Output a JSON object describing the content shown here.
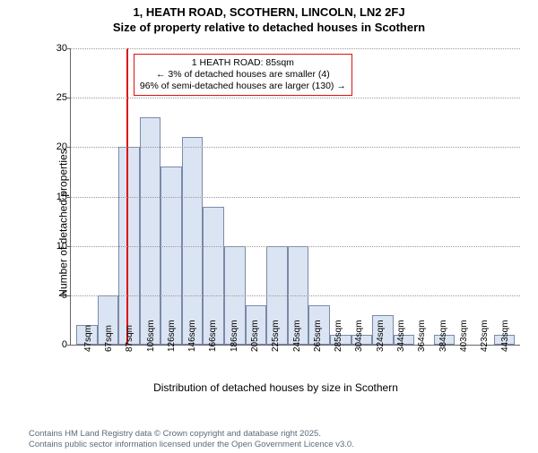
{
  "title_line1": "1, HEATH ROAD, SCOTHERN, LINCOLN, LN2 2FJ",
  "title_line2": "Size of property relative to detached houses in Scothern",
  "chart": {
    "type": "histogram",
    "y_axis_title": "Number of detached properties",
    "x_axis_title": "Distribution of detached houses by size in Scothern",
    "ylim": [
      0,
      30
    ],
    "ytick_step": 5,
    "bar_fill": "#dbe4f3",
    "bar_stroke": "#7a8aa8",
    "grid_color": "#999999",
    "background": "#ffffff",
    "ref_x_sqm": 85,
    "ref_color": "#dd1111",
    "x_ticks": [
      "47sqm",
      "67sqm",
      "87sqm",
      "106sqm",
      "126sqm",
      "146sqm",
      "166sqm",
      "186sqm",
      "205sqm",
      "225sqm",
      "245sqm",
      "265sqm",
      "285sqm",
      "304sqm",
      "324sqm",
      "344sqm",
      "364sqm",
      "384sqm",
      "403sqm",
      "423sqm",
      "443sqm"
    ],
    "bars": [
      2,
      5,
      20,
      23,
      18,
      21,
      14,
      10,
      4,
      10,
      10,
      4,
      1,
      1,
      3,
      1,
      0,
      1,
      0,
      0,
      1
    ]
  },
  "annotation": {
    "line1": "1 HEATH ROAD: 85sqm",
    "line2": "← 3% of detached houses are smaller (4)",
    "line3": "96% of semi-detached houses are larger (130) →"
  },
  "footer": {
    "line1": "Contains HM Land Registry data © Crown copyright and database right 2025.",
    "line2": "Contains public sector information licensed under the Open Government Licence v3.0."
  }
}
